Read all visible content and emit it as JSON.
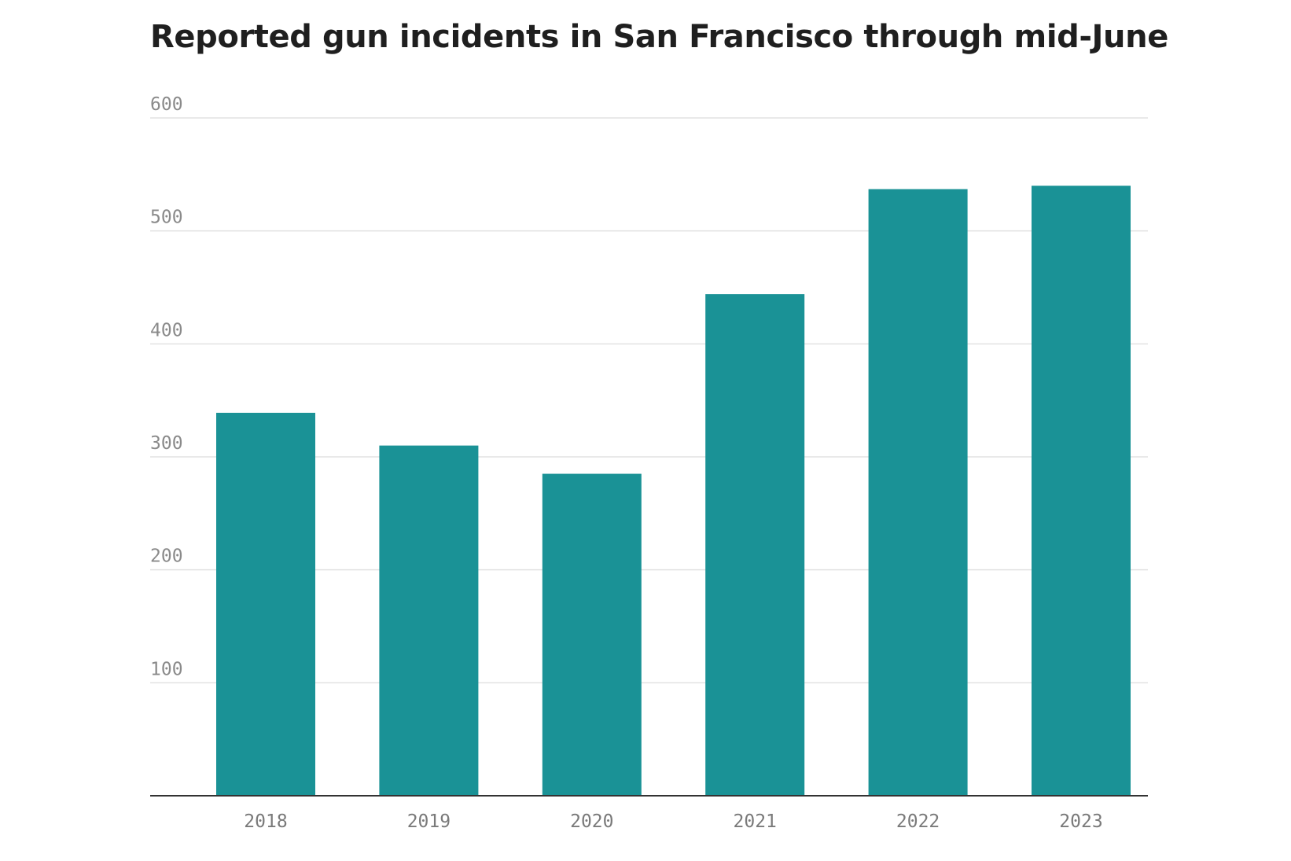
{
  "chart_data": {
    "type": "bar",
    "title": "Reported gun incidents in San Francisco through mid-June",
    "xlabel": "",
    "ylabel": "",
    "categories": [
      "2018",
      "2019",
      "2020",
      "2021",
      "2022",
      "2023"
    ],
    "values": [
      339,
      310,
      285,
      444,
      537,
      540
    ],
    "ylim": [
      0,
      600
    ],
    "yticks": [
      100,
      200,
      300,
      400,
      500,
      600
    ],
    "grid": true,
    "legend": "none",
    "colors": {
      "bar": "#1a9296",
      "grid": "#e2e2e2",
      "baseline": "#333333",
      "title": "#1f1f1f"
    }
  }
}
